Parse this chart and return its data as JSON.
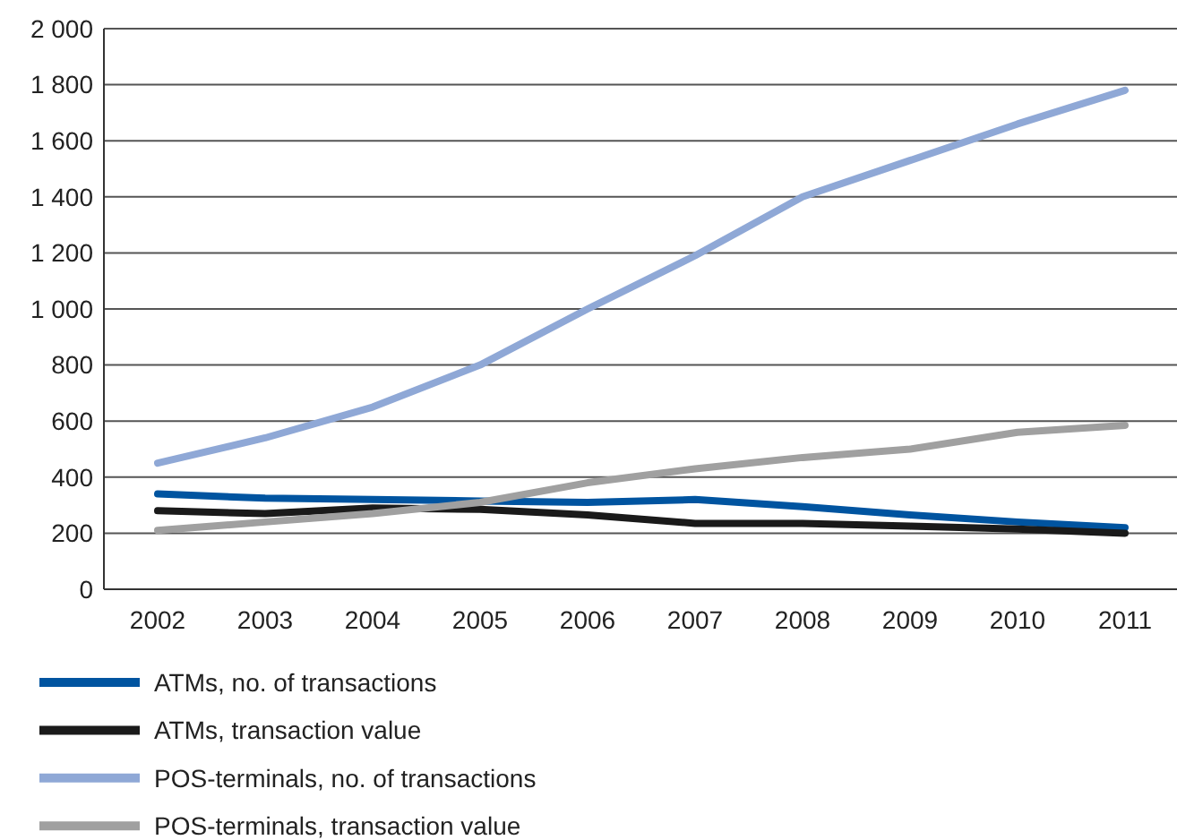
{
  "chart_data": {
    "type": "line",
    "categories": [
      "2002",
      "2003",
      "2004",
      "2005",
      "2006",
      "2007",
      "2008",
      "2009",
      "2010",
      "2011"
    ],
    "series": [
      {
        "name": "ATMs, no. of transactions",
        "color": "#0054a0",
        "values": [
          340,
          325,
          320,
          315,
          310,
          320,
          295,
          265,
          240,
          220
        ]
      },
      {
        "name": "ATMs, transaction value",
        "color": "#1a1a1a",
        "values": [
          280,
          270,
          290,
          285,
          265,
          235,
          235,
          225,
          215,
          200
        ]
      },
      {
        "name": "POS-terminals, no. of transactions",
        "color": "#8fa8d6",
        "values": [
          450,
          540,
          650,
          800,
          1000,
          1190,
          1400,
          1530,
          1660,
          1780
        ]
      },
      {
        "name": "POS-terminals, transaction value",
        "color": "#a0a0a0",
        "values": [
          210,
          240,
          270,
          310,
          380,
          430,
          470,
          500,
          560,
          585
        ]
      }
    ],
    "ylim": [
      0,
      2000
    ],
    "yticks": [
      0,
      200,
      400,
      600,
      800,
      {
        "value": 1000,
        "label": "1 000"
      },
      {
        "value": 1200,
        "label": "1 200"
      },
      {
        "value": 1400,
        "label": "1 400"
      },
      {
        "value": 1600,
        "label": "1 600"
      },
      {
        "value": 1800,
        "label": "1 800"
      },
      {
        "value": 2000,
        "label": "2 000"
      }
    ],
    "grid": "y",
    "legend": "bottom",
    "marker": "none",
    "line_style": "solid"
  }
}
